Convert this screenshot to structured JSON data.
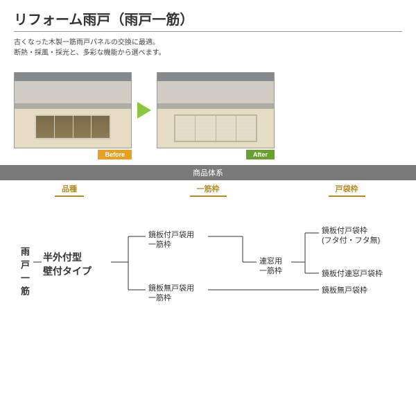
{
  "header": {
    "title": "リフォーム雨戸（雨戸一筋）",
    "desc_line1": "古くなった木製一筋雨戸パネルの交換に最適。",
    "desc_line2": "断熱・採風・採光と、多彩な機能から選べます。"
  },
  "badges": {
    "before": "Before",
    "after": "After"
  },
  "system": {
    "header": "商品体系",
    "columns": {
      "c1": "品種",
      "c2": "一筋枠",
      "c3": "戸袋枠"
    }
  },
  "tree": {
    "root": "雨戸一筋",
    "type": "半外付型\n壁付タイプ",
    "mid1": "鏡板付戸袋用\n一筋枠",
    "mid2": "鏡板無戸袋用\n一筋枠",
    "conn": "連窓用\n一筋枠",
    "leaf1": "鏡板付戸袋枠\n(フタ付・フタ無)",
    "leaf2": "鏡板付連窓戸袋枠",
    "leaf3": "鏡板無戸袋枠"
  },
  "colors": {
    "accent_gold": "#b28c24",
    "before_badge": "#e8a01e",
    "after_badge": "#6aa12e",
    "arrow": "#8cc63f",
    "system_hdr_bg": "#7a7a7a",
    "line": "#333333"
  }
}
